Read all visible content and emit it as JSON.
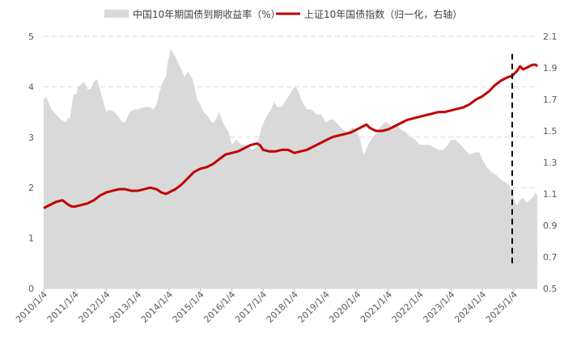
{
  "chart_data": {
    "type": "area+line",
    "title": "",
    "grid": true,
    "legend_placement": "top-center",
    "x_ticks": [
      "2010/1/4",
      "2011/1/4",
      "2012/1/4",
      "2013/1/4",
      "2014/1/4",
      "2015/1/4",
      "2016/1/4",
      "2017/1/4",
      "2018/1/4",
      "2019/1/4",
      "2020/1/4",
      "2021/1/4",
      "2022/1/4",
      "2023/1/4",
      "2024/1/4",
      "2025/1/4"
    ],
    "x_range": [
      2010.0,
      2025.75
    ],
    "y_left": {
      "ticks": [
        "0",
        "1",
        "2",
        "3",
        "4",
        "5"
      ],
      "range": [
        0,
        5
      ]
    },
    "y_right": {
      "ticks": [
        "0.5",
        "0.7",
        "0.9",
        "1.1",
        "1.3",
        "1.5",
        "1.7",
        "1.9",
        "2.1"
      ],
      "range": [
        0.5,
        2.1
      ]
    },
    "vline": {
      "x": 2024.95,
      "y_left_from": 0.5,
      "y_left_to": 4.7
    },
    "series": [
      {
        "name": "中国10年期国债到期收益率（%）",
        "kind": "area",
        "axis": "left",
        "color": "#d9d9d9",
        "x": [
          2010.0,
          2010.08,
          2010.25,
          2010.4,
          2010.55,
          2010.7,
          2010.8,
          2010.83,
          2010.95,
          2011.05,
          2011.1,
          2011.2,
          2011.3,
          2011.4,
          2011.5,
          2011.6,
          2011.7,
          2011.75,
          2011.9,
          2012.0,
          2012.1,
          2012.25,
          2012.4,
          2012.5,
          2012.6,
          2012.75,
          2012.9,
          2013.0,
          2013.2,
          2013.4,
          2013.5,
          2013.6,
          2013.7,
          2013.8,
          2013.9,
          2013.95,
          2014.05,
          2014.2,
          2014.35,
          2014.5,
          2014.6,
          2014.75,
          2014.9,
          2015.0,
          2015.1,
          2015.2,
          2015.35,
          2015.45,
          2015.6,
          2015.75,
          2015.9,
          2016.0,
          2016.15,
          2016.3,
          2016.5,
          2016.65,
          2016.8,
          2016.88,
          2016.95,
          2017.1,
          2017.25,
          2017.35,
          2017.45,
          2017.6,
          2017.75,
          2017.9,
          2018.0,
          2018.1,
          2018.25,
          2018.4,
          2018.55,
          2018.7,
          2018.85,
          2019.0,
          2019.15,
          2019.25,
          2019.4,
          2019.55,
          2019.7,
          2019.85,
          2020.0,
          2020.1,
          2020.2,
          2020.25,
          2020.35,
          2020.5,
          2020.65,
          2020.8,
          2020.95,
          2021.1,
          2021.25,
          2021.4,
          2021.55,
          2021.7,
          2021.85,
          2022.0,
          2022.15,
          2022.3,
          2022.45,
          2022.6,
          2022.75,
          2022.9,
          2023.0,
          2023.15,
          2023.3,
          2023.45,
          2023.6,
          2023.75,
          2023.9,
          2024.0,
          2024.15,
          2024.3,
          2024.45,
          2024.6,
          2024.75,
          2024.85,
          2024.95,
          2025.05,
          2025.1,
          2025.2,
          2025.3,
          2025.4,
          2025.5,
          2025.6,
          2025.7,
          2025.75
        ],
        "values": [
          3.75,
          3.8,
          3.55,
          3.45,
          3.35,
          3.3,
          3.4,
          3.35,
          3.85,
          3.85,
          4.0,
          4.05,
          4.1,
          3.95,
          3.95,
          4.1,
          4.15,
          4.05,
          3.7,
          3.5,
          3.55,
          3.5,
          3.4,
          3.3,
          3.3,
          3.5,
          3.55,
          3.55,
          3.6,
          3.6,
          3.55,
          3.65,
          3.9,
          4.1,
          4.2,
          4.45,
          4.75,
          4.6,
          4.4,
          4.2,
          4.3,
          4.15,
          3.75,
          3.65,
          3.5,
          3.45,
          3.3,
          3.3,
          3.5,
          3.25,
          3.1,
          2.85,
          2.95,
          2.85,
          2.85,
          2.75,
          2.8,
          3.0,
          3.2,
          3.4,
          3.55,
          3.7,
          3.6,
          3.6,
          3.75,
          3.9,
          4.0,
          3.95,
          3.7,
          3.55,
          3.55,
          3.45,
          3.45,
          3.3,
          3.35,
          3.35,
          3.25,
          3.15,
          3.1,
          3.2,
          3.1,
          2.95,
          2.65,
          2.7,
          2.85,
          3.0,
          3.1,
          3.25,
          3.3,
          3.2,
          3.25,
          3.15,
          3.1,
          3.0,
          2.95,
          2.85,
          2.85,
          2.85,
          2.8,
          2.75,
          2.75,
          2.85,
          2.95,
          2.95,
          2.85,
          2.75,
          2.65,
          2.7,
          2.7,
          2.55,
          2.4,
          2.3,
          2.25,
          2.15,
          2.1,
          2.05,
          1.9,
          1.7,
          1.65,
          1.75,
          1.8,
          1.7,
          1.75,
          1.8,
          1.9,
          1.85
        ]
      },
      {
        "name": "上证10年国债指数（归一化，右轴）",
        "kind": "line",
        "axis": "right",
        "color": "#c00000",
        "x": [
          2010.0,
          2010.2,
          2010.4,
          2010.6,
          2010.8,
          2010.9,
          2011.0,
          2011.2,
          2011.4,
          2011.6,
          2011.8,
          2012.0,
          2012.2,
          2012.4,
          2012.6,
          2012.8,
          2013.0,
          2013.2,
          2013.4,
          2013.6,
          2013.75,
          2013.9,
          2014.0,
          2014.2,
          2014.4,
          2014.6,
          2014.8,
          2015.0,
          2015.2,
          2015.4,
          2015.6,
          2015.8,
          2016.0,
          2016.2,
          2016.4,
          2016.6,
          2016.8,
          2016.9,
          2017.0,
          2017.2,
          2017.4,
          2017.6,
          2017.8,
          2017.9,
          2018.0,
          2018.2,
          2018.4,
          2018.6,
          2018.8,
          2019.0,
          2019.2,
          2019.4,
          2019.6,
          2019.8,
          2020.0,
          2020.1,
          2020.2,
          2020.3,
          2020.4,
          2020.5,
          2020.6,
          2020.8,
          2021.0,
          2021.2,
          2021.4,
          2021.6,
          2021.8,
          2022.0,
          2022.2,
          2022.4,
          2022.6,
          2022.8,
          2023.0,
          2023.2,
          2023.4,
          2023.6,
          2023.8,
          2024.0,
          2024.2,
          2024.4,
          2024.6,
          2024.8,
          2024.95,
          2025.1,
          2025.2,
          2025.3,
          2025.4,
          2025.5,
          2025.6,
          2025.7,
          2025.75
        ],
        "values": [
          1.01,
          1.03,
          1.05,
          1.06,
          1.03,
          1.02,
          1.02,
          1.03,
          1.04,
          1.06,
          1.09,
          1.11,
          1.12,
          1.13,
          1.13,
          1.12,
          1.12,
          1.13,
          1.14,
          1.13,
          1.11,
          1.1,
          1.11,
          1.13,
          1.16,
          1.2,
          1.24,
          1.26,
          1.27,
          1.29,
          1.32,
          1.35,
          1.36,
          1.37,
          1.39,
          1.41,
          1.42,
          1.41,
          1.38,
          1.37,
          1.37,
          1.38,
          1.38,
          1.37,
          1.36,
          1.37,
          1.38,
          1.4,
          1.42,
          1.44,
          1.46,
          1.47,
          1.48,
          1.49,
          1.51,
          1.52,
          1.53,
          1.54,
          1.52,
          1.51,
          1.5,
          1.5,
          1.51,
          1.53,
          1.55,
          1.57,
          1.58,
          1.59,
          1.6,
          1.61,
          1.62,
          1.62,
          1.63,
          1.64,
          1.65,
          1.67,
          1.7,
          1.72,
          1.75,
          1.79,
          1.82,
          1.84,
          1.85,
          1.88,
          1.91,
          1.89,
          1.9,
          1.91,
          1.92,
          1.92,
          1.91
        ]
      }
    ]
  }
}
